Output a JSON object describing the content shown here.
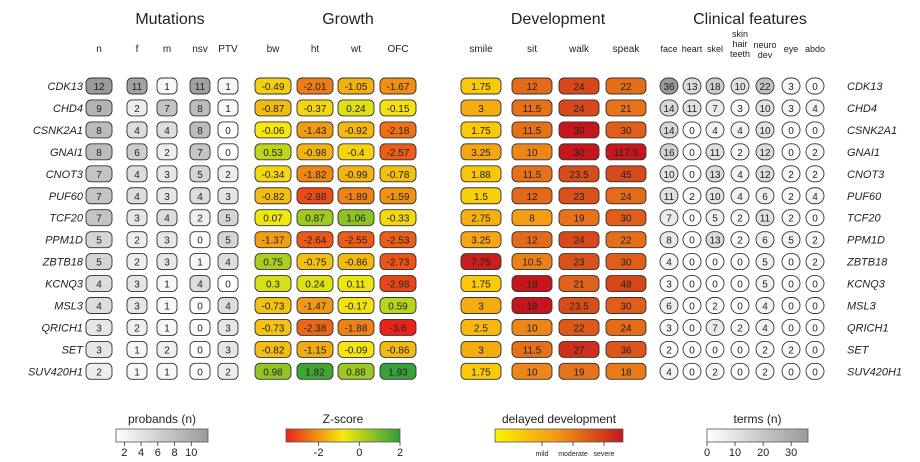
{
  "chart_data": {
    "type": "table",
    "sections": [
      {
        "title": "Mutations",
        "columns": [
          "n",
          "f",
          "m",
          "nsv",
          "PTV"
        ]
      },
      {
        "title": "Growth",
        "columns": [
          "bw",
          "ht",
          "wt",
          "OFC"
        ]
      },
      {
        "title": "Development",
        "columns": [
          "smile",
          "sit",
          "walk",
          "speak"
        ]
      },
      {
        "title": "Clinical features",
        "columns": [
          "face",
          "heart",
          "skel",
          "skin hair teeth",
          "neuro dev",
          "eye",
          "abdo"
        ]
      }
    ],
    "genes": [
      "CDK13",
      "CHD4",
      "CSNK2A1",
      "GNAI1",
      "CNOT3",
      "PUF60",
      "TCF20",
      "PPM1D",
      "ZBTB18",
      "KCNQ3",
      "MSL3",
      "QRICH1",
      "SET",
      "SUV420H1"
    ],
    "mutations": [
      [
        "12",
        "11",
        "1",
        "11",
        "1"
      ],
      [
        "9",
        "2",
        "7",
        "8",
        "1"
      ],
      [
        "8",
        "4",
        "4",
        "8",
        "0"
      ],
      [
        "8",
        "6",
        "2",
        "7",
        "0"
      ],
      [
        "7",
        "4",
        "3",
        "5",
        "2"
      ],
      [
        "7",
        "4",
        "3",
        "4",
        "3"
      ],
      [
        "7",
        "3",
        "4",
        "2",
        "5"
      ],
      [
        "5",
        "2",
        "3",
        "0",
        "5"
      ],
      [
        "5",
        "2",
        "3",
        "1",
        "4"
      ],
      [
        "4",
        "3",
        "1",
        "4",
        "0"
      ],
      [
        "4",
        "3",
        "1",
        "0",
        "4"
      ],
      [
        "3",
        "2",
        "1",
        "0",
        "3"
      ],
      [
        "3",
        "1",
        "2",
        "0",
        "3"
      ],
      [
        "2",
        "1",
        "1",
        "0",
        "2"
      ]
    ],
    "growth": [
      [
        "-0.49",
        "-2.01",
        "-1.05",
        "-1.67"
      ],
      [
        "-0.87",
        "-0.37",
        "0.24",
        "-0.15"
      ],
      [
        "-0.06",
        "-1.43",
        "-0.92",
        "-2.18"
      ],
      [
        "0.53",
        "-0.98",
        "-0.4",
        "-2.57"
      ],
      [
        "-0.34",
        "-1.82",
        "-0.99",
        "-0.78"
      ],
      [
        "-0.82",
        "-2.88",
        "-1.89",
        "-1.59"
      ],
      [
        "0.07",
        "0.87",
        "1.06",
        "-0.33"
      ],
      [
        "-1.37",
        "-2.64",
        "-2.55",
        "-2.53"
      ],
      [
        "0.75",
        "-0.75",
        "-0.86",
        "-2.73"
      ],
      [
        "0.3",
        "0.24",
        "0.11",
        "-2.98"
      ],
      [
        "-0.73",
        "-1.47",
        "-0.17",
        "0.59"
      ],
      [
        "-0.73",
        "-2.38",
        "-1.88",
        "-3.6"
      ],
      [
        "-0.82",
        "-1.15",
        "-0.09",
        "-0.86"
      ],
      [
        "0.98",
        "1.82",
        "0.88",
        "1.93"
      ]
    ],
    "development": [
      [
        "1.75",
        "12",
        "24",
        "22"
      ],
      [
        "3",
        "11.5",
        "24",
        "21"
      ],
      [
        "1.75",
        "11.5",
        "30",
        "30"
      ],
      [
        "3.25",
        "10",
        "30",
        "117.5"
      ],
      [
        "1.88",
        "11.5",
        "23.5",
        "45"
      ],
      [
        "1.5",
        "12",
        "23",
        "24"
      ],
      [
        "2.75",
        "8",
        "19",
        "30"
      ],
      [
        "3.25",
        "12",
        "24",
        "22"
      ],
      [
        "7.75",
        "10.5",
        "23",
        "30"
      ],
      [
        "1.75",
        "18",
        "21",
        "48"
      ],
      [
        "3",
        "18",
        "23.5",
        "30"
      ],
      [
        "2.5",
        "10",
        "22",
        "24"
      ],
      [
        "3",
        "11.5",
        "27",
        "36"
      ],
      [
        "1.75",
        "10",
        "19",
        "18"
      ]
    ],
    "clinical": [
      [
        "36",
        "13",
        "18",
        "10",
        "22",
        "3",
        "0"
      ],
      [
        "14",
        "11",
        "7",
        "3",
        "10",
        "3",
        "4"
      ],
      [
        "14",
        "0",
        "4",
        "4",
        "10",
        "0",
        "0"
      ],
      [
        "16",
        "0",
        "11",
        "2",
        "12",
        "0",
        "2"
      ],
      [
        "10",
        "0",
        "13",
        "4",
        "12",
        "2",
        "2"
      ],
      [
        "11",
        "2",
        "10",
        "4",
        "6",
        "2",
        "4"
      ],
      [
        "7",
        "0",
        "5",
        "2",
        "11",
        "2",
        "0"
      ],
      [
        "8",
        "0",
        "13",
        "2",
        "6",
        "5",
        "2"
      ],
      [
        "4",
        "0",
        "0",
        "0",
        "5",
        "0",
        "2"
      ],
      [
        "3",
        "0",
        "0",
        "0",
        "5",
        "0",
        "0"
      ],
      [
        "6",
        "0",
        "2",
        "0",
        "4",
        "0",
        "0"
      ],
      [
        "3",
        "0",
        "7",
        "2",
        "4",
        "0",
        "0"
      ],
      [
        "2",
        "0",
        "0",
        "0",
        "2",
        "2",
        "0"
      ],
      [
        "4",
        "0",
        "2",
        "0",
        "2",
        "0",
        "0"
      ]
    ],
    "legends": {
      "probands": {
        "title": "probands (n)",
        "ticks": [
          "2",
          "4",
          "6",
          "8",
          "10"
        ],
        "range": [
          1,
          12
        ]
      },
      "zscore": {
        "title": "Z-score",
        "ticks": [
          "-2",
          "0",
          "2"
        ],
        "range": [
          -3.6,
          2
        ]
      },
      "development": {
        "title": "delayed development",
        "ticks": [
          "mild",
          "moderate",
          "severe"
        ]
      },
      "terms": {
        "title": "terms (n)",
        "ticks": [
          "0",
          "10",
          "20",
          "30"
        ],
        "range": [
          0,
          36
        ]
      }
    },
    "colors": {
      "grey_light": "#ffffff",
      "grey_dark": "#9a9a9a",
      "zscore_low": "#e8231a",
      "zscore_mid": "#f6ea10",
      "zscore_high": "#2f9e3a",
      "dev_mild": "#fff200",
      "dev_moderate": "#f29417",
      "dev_severe": "#c5161d"
    }
  }
}
